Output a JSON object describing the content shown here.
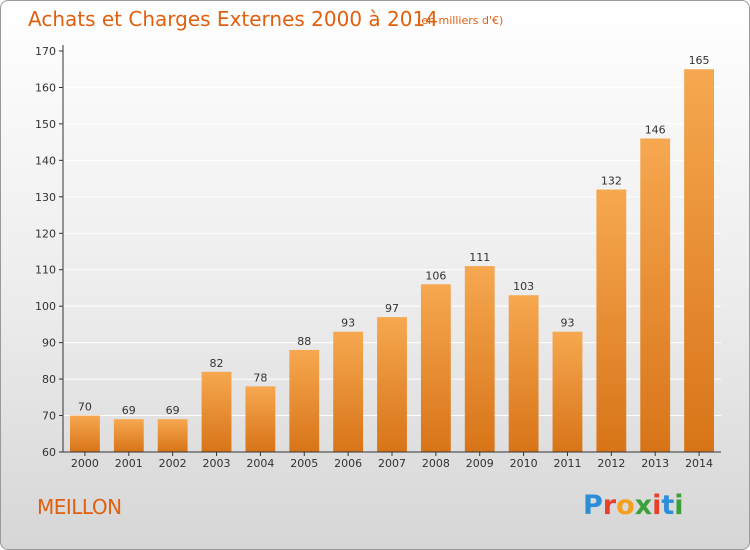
{
  "header": {
    "title": "Achats et Charges Externes 2000 à 2014",
    "unit": "(en milliers d'€)"
  },
  "footer": {
    "commune": "MEILLON",
    "logo_text": "Proxiti",
    "logo_colors": [
      "#2a8fd8",
      "#e8402a",
      "#f4a01c",
      "#3aa03a",
      "#e8402a",
      "#2a8fd8",
      "#3aa03a"
    ]
  },
  "colors": {
    "bar_light": "#f6a850",
    "bar_dark": "#d87418",
    "text": "#e06010",
    "axis": "#333333",
    "grid": "#ffffff"
  },
  "chart_data": {
    "type": "bar",
    "title": "Achats et Charges Externes 2000 à 2014",
    "subtitle": "(en milliers d'€)",
    "categories": [
      "2000",
      "2001",
      "2002",
      "2003",
      "2004",
      "2005",
      "2006",
      "2007",
      "2008",
      "2009",
      "2010",
      "2011",
      "2012",
      "2013",
      "2014"
    ],
    "values": [
      70,
      69,
      69,
      82,
      78,
      88,
      93,
      97,
      106,
      111,
      103,
      93,
      132,
      146,
      165
    ],
    "ylim": [
      60,
      170
    ],
    "yticks": [
      60,
      70,
      80,
      90,
      100,
      110,
      120,
      130,
      140,
      150,
      160,
      170
    ],
    "grid": true,
    "data_labels": true
  }
}
